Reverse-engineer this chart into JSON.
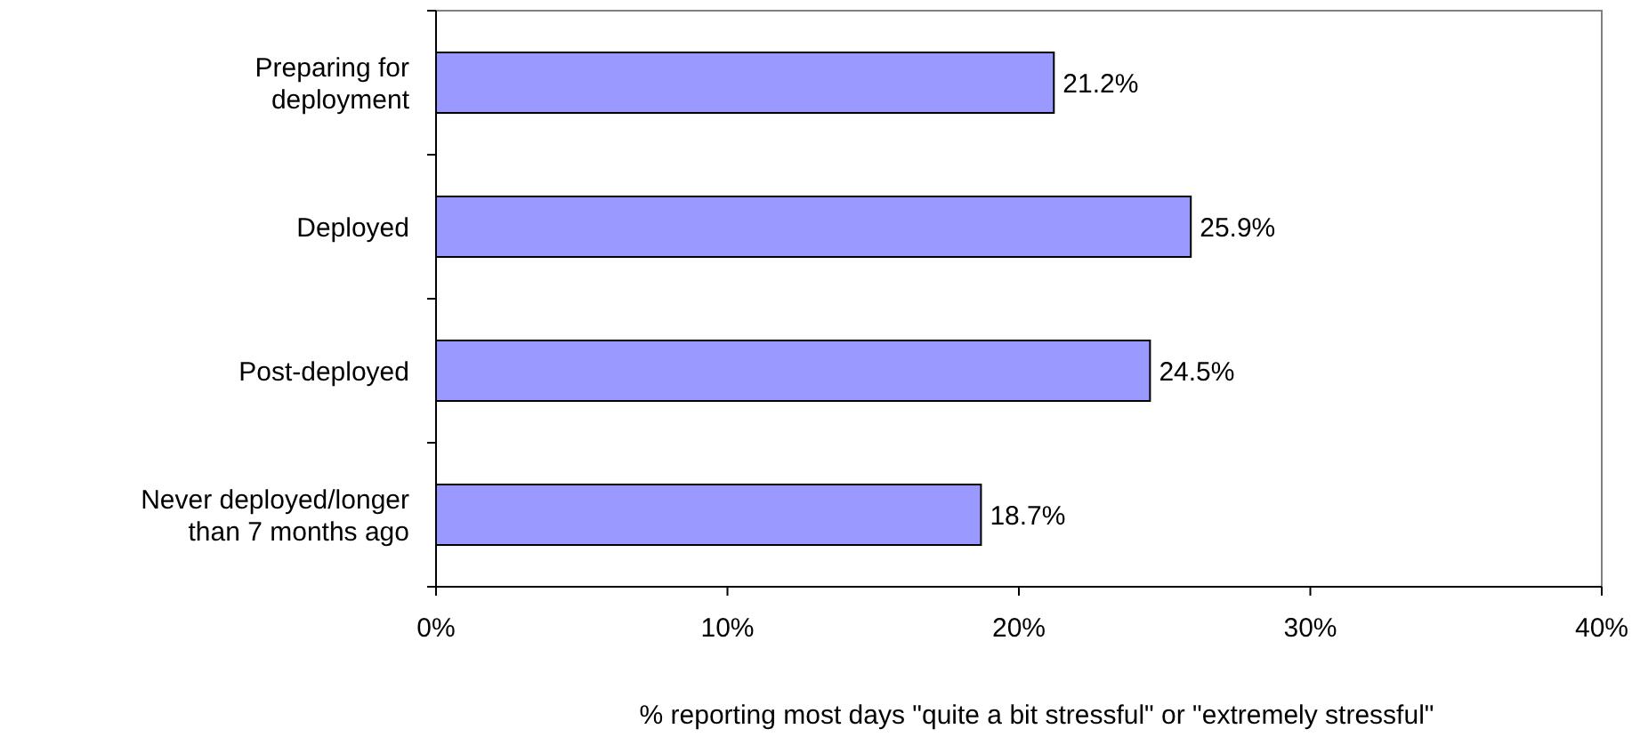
{
  "chart_data": {
    "type": "bar",
    "orientation": "horizontal",
    "xlabel": "% reporting most days \"quite a bit stressful\" or \"extremely stressful\"",
    "categories": [
      "Preparing for deployment",
      "Deployed",
      "Post-deployed",
      "Never deployed/longer than 7 months ago"
    ],
    "values": [
      21.2,
      25.9,
      24.5,
      18.7
    ],
    "color": "#9999ff",
    "value_labels": [
      "21.2%",
      "25.9%",
      "24.5%",
      "18.7%"
    ],
    "xlim": [
      0,
      40
    ],
    "xticks": [
      {
        "value": 0,
        "label": "0%"
      },
      {
        "value": 10,
        "label": "10%"
      },
      {
        "value": 20,
        "label": "20%"
      },
      {
        "value": 30,
        "label": "30%"
      },
      {
        "value": 40,
        "label": "40%"
      }
    ],
    "grid": false
  }
}
